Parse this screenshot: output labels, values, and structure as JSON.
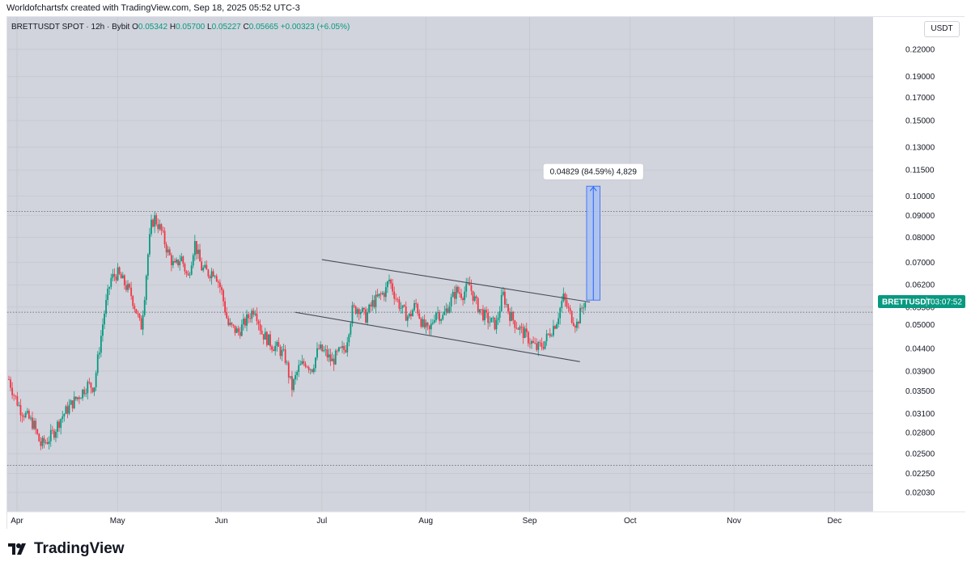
{
  "header": {
    "caption": "Worldofchartsfx created with TradingView.com, Sep 18, 2025 05:52 UTC-3"
  },
  "legend": {
    "symbol": "BRETTUSDT SPOT · 12h · Bybit",
    "o_label": "O",
    "o_value": "0.05342",
    "h_label": "H",
    "h_value": "0.05700",
    "l_label": "L",
    "l_value": "0.05227",
    "c_label": "C",
    "c_value": "0.05665",
    "change": "+0.00323 (+6.05%)"
  },
  "currency_button": "USDT",
  "measure_label": "0.04829 (84.59%) 4,829",
  "price_tag": {
    "symbol": "BRETTUSDT",
    "countdown": "03:07:52"
  },
  "brand": "TradingView",
  "colors": {
    "background": "#d1d4dc",
    "up": "#089981",
    "down": "#f23645",
    "measure_fill": "#a8c1f0",
    "measure_line": "#2962ff",
    "channel": "#4a4e5a",
    "grid": "#c2c5cc",
    "price_tag": "#089981"
  },
  "chart_data": {
    "type": "candlestick",
    "symbol": "BRETTUSDT",
    "timeframe": "12h",
    "y_scale": "log",
    "ylim": [
      0.0195,
      0.235
    ],
    "y_ticks": [
      "0.22000",
      "0.19000",
      "0.17000",
      "0.15000",
      "0.13000",
      "0.11500",
      "0.10000",
      "0.09000",
      "0.08000",
      "0.07000",
      "0.06200",
      "0.05500",
      "0.05000",
      "0.04400",
      "0.03900",
      "0.03500",
      "0.03100",
      "0.02800",
      "0.02500",
      "0.02250",
      "0.02030"
    ],
    "x_ticks": [
      "Apr",
      "May",
      "Jun",
      "Jul",
      "Aug",
      "Sep",
      "Oct",
      "Nov",
      "Dec"
    ],
    "close_path": [
      [
        "2025-03-29",
        0.0385
      ],
      [
        "2025-03-31",
        0.0345
      ],
      [
        "2025-04-02",
        0.0318
      ],
      [
        "2025-04-04",
        0.0305
      ],
      [
        "2025-04-06",
        0.0292
      ],
      [
        "2025-04-08",
        0.0262
      ],
      [
        "2025-04-10",
        0.0268
      ],
      [
        "2025-04-12",
        0.0281
      ],
      [
        "2025-04-14",
        0.0302
      ],
      [
        "2025-04-17",
        0.0325
      ],
      [
        "2025-04-20",
        0.0345
      ],
      [
        "2025-04-22",
        0.0362
      ],
      [
        "2025-04-24",
        0.0358
      ],
      [
        "2025-04-25",
        0.041
      ],
      [
        "2025-04-27",
        0.053
      ],
      [
        "2025-04-29",
        0.064
      ],
      [
        "2025-05-01",
        0.066
      ],
      [
        "2025-05-03",
        0.0625
      ],
      [
        "2025-05-05",
        0.059
      ],
      [
        "2025-05-07",
        0.0525
      ],
      [
        "2025-05-08",
        0.049
      ],
      [
        "2025-05-09",
        0.058
      ],
      [
        "2025-05-10",
        0.072
      ],
      [
        "2025-05-11",
        0.085
      ],
      [
        "2025-05-12",
        0.089
      ],
      [
        "2025-05-14",
        0.083
      ],
      [
        "2025-05-16",
        0.074
      ],
      [
        "2025-05-18",
        0.068
      ],
      [
        "2025-05-20",
        0.072
      ],
      [
        "2025-05-22",
        0.064
      ],
      [
        "2025-05-24",
        0.078
      ],
      [
        "2025-05-26",
        0.068
      ],
      [
        "2025-05-28",
        0.066
      ],
      [
        "2025-05-30",
        0.067
      ],
      [
        "2025-06-01",
        0.06
      ],
      [
        "2025-06-03",
        0.05
      ],
      [
        "2025-06-06",
        0.048
      ],
      [
        "2025-06-09",
        0.052
      ],
      [
        "2025-06-11",
        0.055
      ],
      [
        "2025-06-13",
        0.048
      ],
      [
        "2025-06-16",
        0.045
      ],
      [
        "2025-06-18",
        0.044
      ],
      [
        "2025-06-20",
        0.042
      ],
      [
        "2025-06-22",
        0.0355
      ],
      [
        "2025-06-24",
        0.0395
      ],
      [
        "2025-06-26",
        0.041
      ],
      [
        "2025-06-28",
        0.0395
      ],
      [
        "2025-06-30",
        0.044
      ],
      [
        "2025-07-02",
        0.043
      ],
      [
        "2025-07-04",
        0.041
      ],
      [
        "2025-07-06",
        0.043
      ],
      [
        "2025-07-08",
        0.044
      ],
      [
        "2025-07-10",
        0.054
      ],
      [
        "2025-07-12",
        0.055
      ],
      [
        "2025-07-14",
        0.052
      ],
      [
        "2025-07-16",
        0.056
      ],
      [
        "2025-07-18",
        0.058
      ],
      [
        "2025-07-20",
        0.06
      ],
      [
        "2025-07-21",
        0.064
      ],
      [
        "2025-07-23",
        0.058
      ],
      [
        "2025-07-25",
        0.054
      ],
      [
        "2025-07-27",
        0.052
      ],
      [
        "2025-07-29",
        0.056
      ],
      [
        "2025-07-31",
        0.05
      ],
      [
        "2025-08-02",
        0.048
      ],
      [
        "2025-08-04",
        0.054
      ],
      [
        "2025-08-06",
        0.052
      ],
      [
        "2025-08-08",
        0.056
      ],
      [
        "2025-08-10",
        0.06
      ],
      [
        "2025-08-12",
        0.059
      ],
      [
        "2025-08-14",
        0.062
      ],
      [
        "2025-08-16",
        0.056
      ],
      [
        "2025-08-18",
        0.053
      ],
      [
        "2025-08-20",
        0.051
      ],
      [
        "2025-08-22",
        0.05
      ],
      [
        "2025-08-24",
        0.059
      ],
      [
        "2025-08-26",
        0.053
      ],
      [
        "2025-08-28",
        0.05
      ],
      [
        "2025-08-30",
        0.048
      ],
      [
        "2025-09-01",
        0.046
      ],
      [
        "2025-09-03",
        0.044
      ],
      [
        "2025-09-05",
        0.045
      ],
      [
        "2025-09-07",
        0.048
      ],
      [
        "2025-09-09",
        0.051
      ],
      [
        "2025-09-11",
        0.058
      ],
      [
        "2025-09-13",
        0.053
      ],
      [
        "2025-09-15",
        0.05
      ],
      [
        "2025-09-17",
        0.056
      ],
      [
        "2025-09-18",
        0.0567
      ]
    ],
    "channel": {
      "upper": [
        [
          "2025-07-01",
          0.071
        ],
        [
          "2025-09-19",
          0.0565
        ]
      ],
      "lower": [
        [
          "2025-06-23",
          0.0535
        ],
        [
          "2025-09-16",
          0.041
        ]
      ]
    },
    "dotted_levels": [
      0.092,
      0.0535,
      0.0235
    ],
    "measure": {
      "from_date": "2025-09-18",
      "to_date": "2025-09-22",
      "from_price": 0.0571,
      "to_price": 0.1054,
      "label": "0.04829 (84.59%) 4,829"
    },
    "last_price_tag": {
      "price": 0.05665
    }
  }
}
